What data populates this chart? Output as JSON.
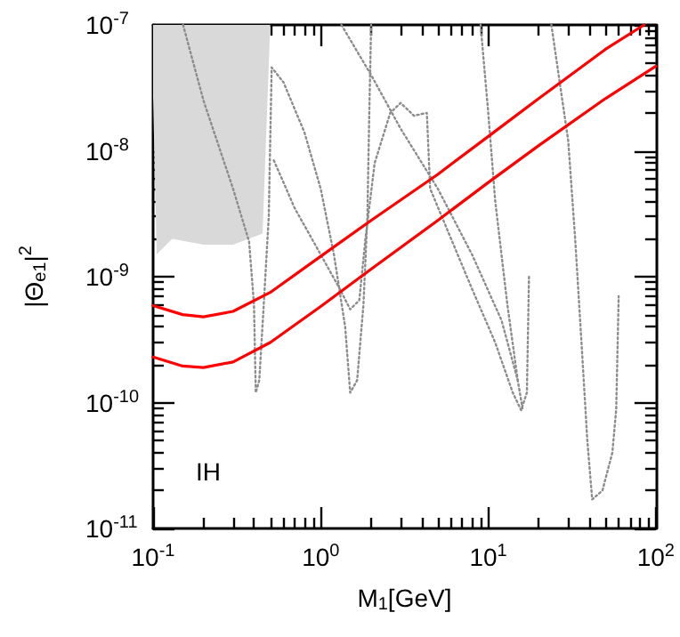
{
  "chart_data": {
    "type": "line",
    "xlabel": "M$_{1}$[GeV]",
    "ylabel": "|Θ$_{e1}$|$^{2}$",
    "log": "xy",
    "grid": false,
    "marker": "none",
    "annotations": [
      "IH"
    ],
    "xlim": [
      0.1,
      100
    ],
    "ylim": [
      1e-11,
      1e-07
    ],
    "xticks": [
      {
        "value": 0.1,
        "label": "10$^{-1}$"
      },
      {
        "value": 1,
        "label": "10$^{0}$"
      },
      {
        "value": 10,
        "label": "10$^{1}$"
      },
      {
        "value": 100,
        "label": "10$^{2}$"
      }
    ],
    "yticks": [
      {
        "value": 1e-11,
        "label": "10$^{-11}$"
      },
      {
        "value": 1e-10,
        "label": "10$^{-10}$"
      },
      {
        "value": 1e-09,
        "label": "10$^{-9}$"
      },
      {
        "value": 1e-08,
        "label": "10$^{-8}$"
      },
      {
        "value": 1e-07,
        "label": "10$^{-7}$"
      }
    ],
    "series": [
      {
        "type": "area",
        "color": "#d9d9d9",
        "x": [
          0.1,
          0.105,
          0.13,
          0.2,
          0.3,
          0.45,
          0.5,
          0.1
        ],
        "values": [
          2.7e-08,
          1.5e-09,
          2e-09,
          1.8e-09,
          1.8e-09,
          2.2e-09,
          1e-07,
          1e-07
        ]
      },
      {
        "color": "#8c8c8c",
        "line_style": "dotted",
        "x": [
          0.151,
          0.2,
          0.3,
          0.374,
          0.4,
          0.41,
          0.43,
          0.455,
          0.49,
          0.51,
          0.6,
          0.8,
          1.0,
          1.2,
          1.4,
          1.5,
          1.65,
          1.8,
          1.9,
          1.95,
          2.0
        ],
        "values": [
          1e-07,
          2.5e-08,
          5e-09,
          1.9e-09,
          6e-10,
          1.2e-10,
          1.5e-10,
          5.3e-10,
          3e-09,
          4.6e-08,
          3.5e-08,
          1.4e-08,
          5e-09,
          1.5e-09,
          4e-10,
          1.2e-10,
          1.5e-10,
          6e-10,
          3e-09,
          2e-08,
          1e-07
        ]
      },
      {
        "color": "#8c8c8c",
        "line_style": "dotted",
        "x": [
          0.525,
          0.7,
          1.0,
          1.3,
          1.5,
          1.7,
          1.85,
          2.1,
          2.6,
          3,
          3.6,
          4.3,
          4.5,
          6,
          8,
          11,
          14,
          15.7,
          17,
          17.5
        ],
        "values": [
          8.4e-09,
          3.5e-09,
          1.5e-09,
          8e-10,
          5.5e-10,
          6.5e-10,
          2e-09,
          8e-09,
          2e-08,
          2.4e-08,
          1.9e-08,
          2e-08,
          5e-09,
          2e-09,
          8e-10,
          3e-10,
          1.2e-10,
          8.7e-11,
          1.2e-10,
          1e-09
        ]
      },
      {
        "color": "#8c8c8c",
        "line_style": "dotted",
        "x": [
          1.33,
          2,
          3,
          5,
          8,
          12,
          15,
          16
        ],
        "values": [
          1e-07,
          4e-08,
          1.5e-08,
          5e-09,
          1.5e-09,
          4.5e-10,
          1.5e-10,
          9e-11
        ]
      },
      {
        "color": "#8c8c8c",
        "line_style": "dotted",
        "x": [
          9,
          10,
          11,
          13,
          15
        ],
        "values": [
          1e-07,
          2e-08,
          4e-09,
          6e-10,
          1.5e-10
        ]
      },
      {
        "color": "#8c8c8c",
        "line_style": "dotted",
        "x": [
          23.8,
          30,
          33,
          36,
          39,
          41.7,
          48,
          55,
          58,
          60
        ],
        "values": [
          1e-07,
          1.2e-08,
          2e-09,
          3e-10,
          5e-11,
          1.7e-11,
          2e-11,
          4e-11,
          8.8e-11,
          7e-10
        ]
      },
      {
        "color": "#ff0000",
        "line_style": "solid",
        "x": [
          0.1,
          0.15,
          0.2,
          0.3,
          0.5,
          1,
          2,
          5,
          10,
          20,
          50,
          85
        ],
        "values": [
          5.9e-10,
          5e-10,
          4.8e-10,
          5.3e-10,
          7.5e-10,
          1.45e-09,
          2.8e-09,
          6.5e-09,
          1.3e-08,
          2.6e-08,
          6.4e-08,
          1e-07
        ]
      },
      {
        "color": "#ff0000",
        "line_style": "solid",
        "x": [
          0.1,
          0.15,
          0.2,
          0.3,
          0.5,
          1,
          2,
          5,
          10,
          20,
          50,
          100
        ],
        "values": [
          2.3e-10,
          1.95e-10,
          1.9e-10,
          2.1e-10,
          3e-10,
          5.8e-10,
          1.15e-09,
          2.8e-09,
          5.6e-09,
          1.1e-08,
          2.6e-08,
          4.7e-08
        ]
      }
    ]
  }
}
